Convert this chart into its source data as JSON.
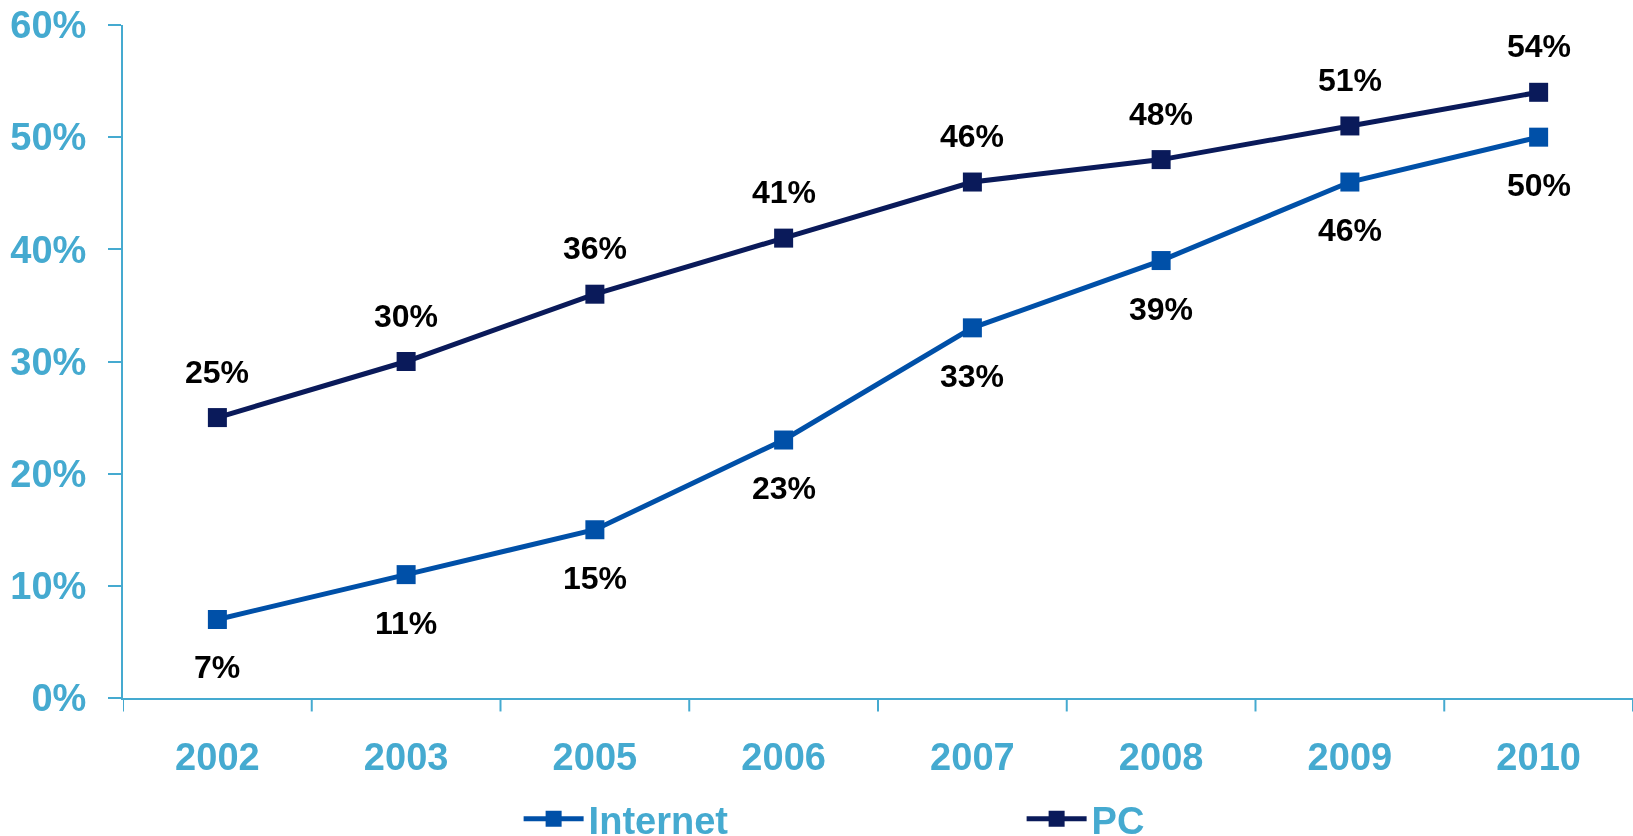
{
  "chart_data": {
    "type": "line",
    "categories": [
      "2002",
      "2003",
      "2005",
      "2006",
      "2007",
      "2008",
      "2009",
      "2010"
    ],
    "series": [
      {
        "name": "Internet",
        "color": "#0050a8",
        "values": [
          7,
          11,
          15,
          23,
          33,
          39,
          46,
          50
        ],
        "value_labels": [
          "7%",
          "11%",
          "15%",
          "23%",
          "33%",
          "39%",
          "46%",
          "50%"
        ]
      },
      {
        "name": "PC",
        "color": "#0a1a5a",
        "values": [
          25,
          30,
          36,
          41,
          46,
          48,
          51,
          54
        ],
        "value_labels": [
          "25%",
          "30%",
          "36%",
          "41%",
          "46%",
          "48%",
          "51%",
          "54%"
        ]
      }
    ],
    "ylim": [
      0,
      60
    ],
    "yticks": [
      {
        "value": 0,
        "label": "0%"
      },
      {
        "value": 10,
        "label": "10%"
      },
      {
        "value": 20,
        "label": "20%"
      },
      {
        "value": 30,
        "label": "30%"
      },
      {
        "value": 40,
        "label": "40%"
      },
      {
        "value": 50,
        "label": "50%"
      },
      {
        "value": 60,
        "label": "60%"
      }
    ],
    "grid": false,
    "legend": "bottom",
    "marker": "square",
    "line_style": "solid"
  }
}
